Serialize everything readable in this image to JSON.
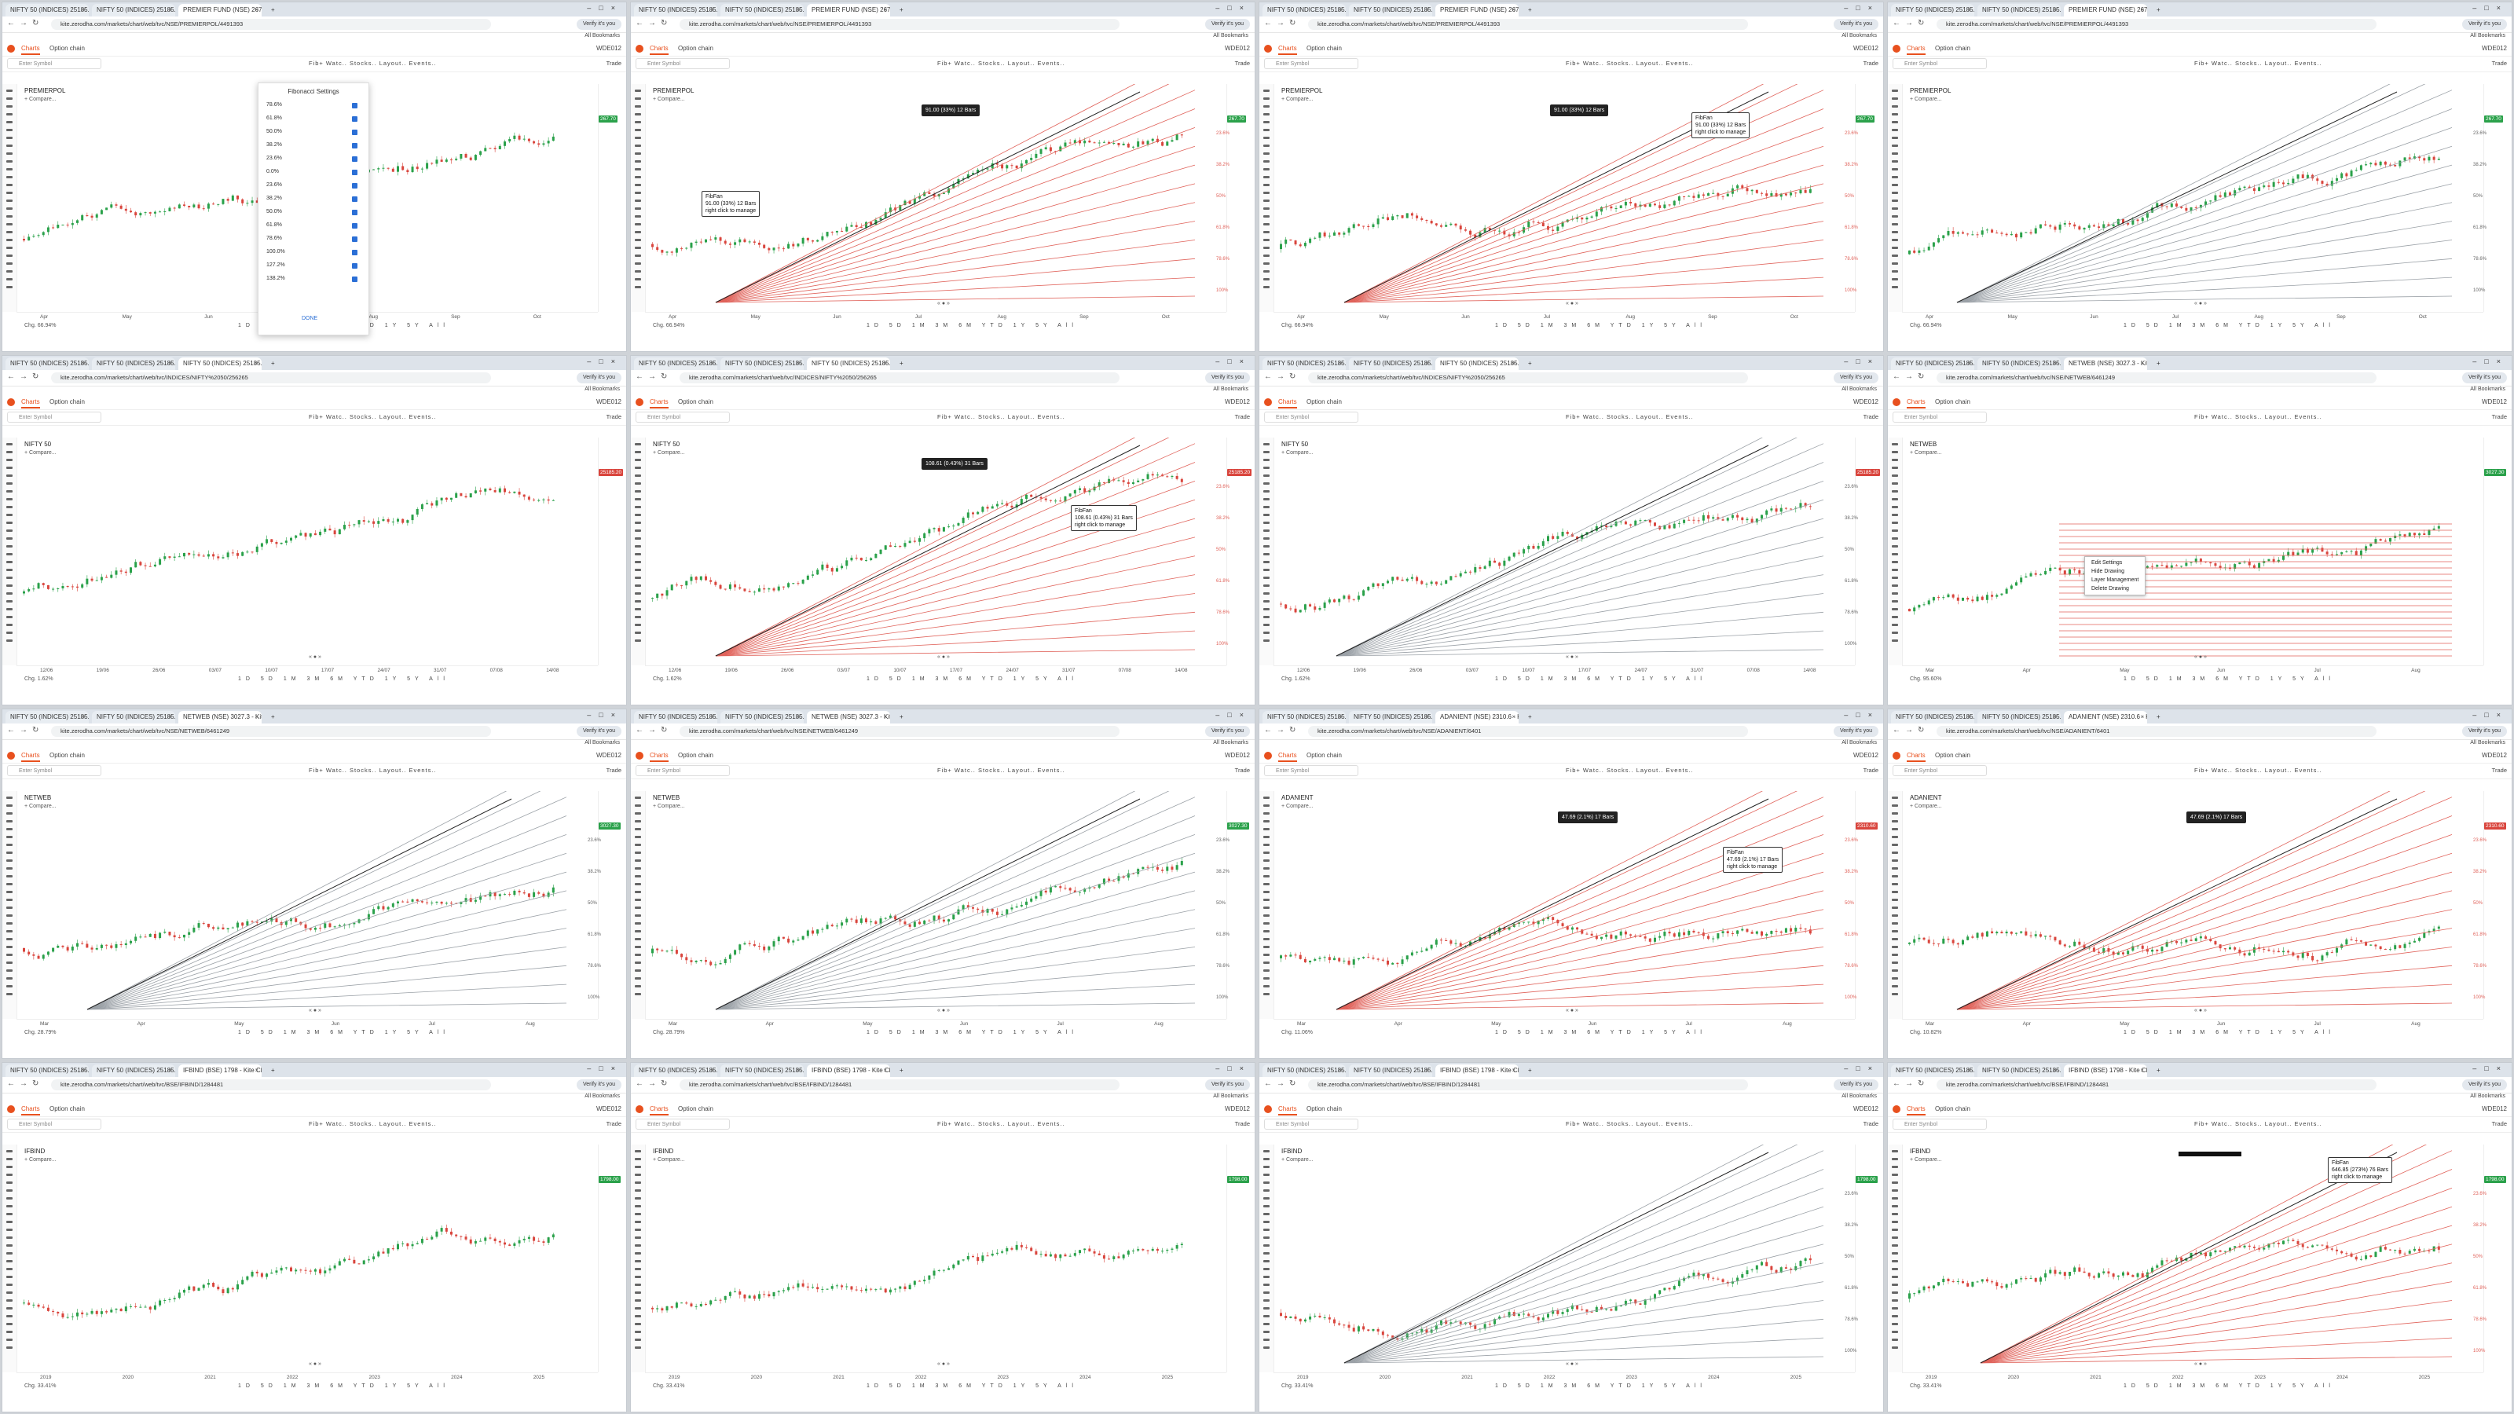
{
  "browser": {
    "tabs": [
      {
        "label": "NIFTY 50 (INDICES) 25185.20"
      },
      {
        "label": "NIFTY 50 (INDICES) 25185.20"
      },
      {
        "label": "PREMIER FUND (NSE) 267.7 - Kite"
      },
      {
        "label": "NIFTY 50 (INDICES) 25185.20"
      },
      {
        "label": "NETWEB (NSE) 3027.3 - Kite Ch"
      },
      {
        "label": "ADANIENT (NSE) 2310.6 - Kite"
      },
      {
        "label": "IFBIND (BSE) 1798 - Kite Chart"
      }
    ],
    "urls": [
      "kite.zerodha.com/markets/chart/web/tvc/NSE/PREMIERPOL/4491393",
      "kite.zerodha.com/markets/chart/web/tvc/INDICES/NIFTY%2050/256265",
      "kite.zerodha.com/markets/chart/web/tvc/NSE/NETWEB/6461249",
      "kite.zerodha.com/markets/chart/web/tvc/NSE/ADANIENT/6401",
      "kite.zerodha.com/markets/chart/web/tvc/BSE/IFBIND/1284481"
    ],
    "profile_label": "Verify it's you",
    "bookmarks_label": "All Bookmarks"
  },
  "app": {
    "tab_chart": "Charts",
    "tab_option_chain": "Option chain",
    "account": "WDE012",
    "search_placeholder": "Enter Symbol",
    "toolbar_items": "Fib+  Watc..  Stocks..  Layout..  Events..",
    "trade_label": "Trade",
    "compare_label": "+ Compare...",
    "periods": [
      "1D",
      "5D",
      "1M",
      "3M",
      "6M",
      "YTD",
      "1Y",
      "5Y",
      "All"
    ],
    "scroll_btn": "« ● »"
  },
  "panels": [
    {
      "symbol": "PREMIERPOL",
      "chg": "Chg. 66.94%",
      "tab_active": 2,
      "url": 0,
      "xlabels": [
        "Apr",
        "May",
        "Jun",
        "Jul",
        "Aug",
        "Sep",
        "Oct"
      ],
      "price_tag": "267.70",
      "color_tag": "green",
      "fan": "none",
      "dialog": true
    },
    {
      "symbol": "PREMIERPOL",
      "chg": "Chg. 66.94%",
      "tab_active": 2,
      "url": 0,
      "xlabels": [
        "Apr",
        "May",
        "Jun",
        "Jul",
        "Aug",
        "Sep",
        "Oct"
      ],
      "price_tag": "267.70",
      "color_tag": "green",
      "fan": "red",
      "tip1": "91.00 (33%) 12 Bars",
      "tip2": "FibFan\n91.00 (33%) 12 Bars\nright click to manage"
    },
    {
      "symbol": "PREMIERPOL",
      "chg": "Chg. 66.94%",
      "tab_active": 2,
      "url": 0,
      "xlabels": [
        "Apr",
        "May",
        "Jun",
        "Jul",
        "Aug",
        "Sep",
        "Oct"
      ],
      "price_tag": "267.70",
      "color_tag": "green",
      "fan": "red",
      "tip1": "91.00 (33%) 12 Bars",
      "tip2": "FibFan\n91.00 (33%) 12 Bars\nright click to manage"
    },
    {
      "symbol": "PREMIERPOL",
      "chg": "Chg. 66.94%",
      "tab_active": 2,
      "url": 0,
      "xlabels": [
        "Apr",
        "May",
        "Jun",
        "Jul",
        "Aug",
        "Sep",
        "Oct"
      ],
      "price_tag": "267.70",
      "color_tag": "green",
      "fan": "gray"
    },
    {
      "symbol": "NIFTY 50",
      "chg": "Chg. 1.62%",
      "tab_active": 3,
      "url": 1,
      "xlabels": [
        "12/06",
        "19/06",
        "26/06",
        "03/07",
        "10/07",
        "17/07",
        "24/07",
        "31/07",
        "07/08",
        "14/08"
      ],
      "price_tag": "25185.20",
      "color_tag": "red",
      "fan": "none"
    },
    {
      "symbol": "NIFTY 50",
      "chg": "Chg. 1.62%",
      "tab_active": 3,
      "url": 1,
      "xlabels": [
        "12/06",
        "19/06",
        "26/06",
        "03/07",
        "10/07",
        "17/07",
        "24/07",
        "31/07",
        "07/08",
        "14/08"
      ],
      "price_tag": "25185.20",
      "color_tag": "red",
      "fan": "red",
      "tip1": "108.61 (0.43%) 31 Bars",
      "tip2": "FibFan\n108.61 (0.43%) 31 Bars\nright click to manage"
    },
    {
      "symbol": "NIFTY 50",
      "chg": "Chg. 1.62%",
      "tab_active": 3,
      "url": 1,
      "xlabels": [
        "12/06",
        "19/06",
        "26/06",
        "03/07",
        "10/07",
        "17/07",
        "24/07",
        "31/07",
        "07/08",
        "14/08"
      ],
      "price_tag": "25185.20",
      "color_tag": "red",
      "fan": "gray"
    },
    {
      "symbol": "NETWEB",
      "chg": "Chg. 95.60%",
      "tab_active": 4,
      "url": 2,
      "xlabels": [
        "Mar",
        "Apr",
        "May",
        "Jun",
        "Jul",
        "Aug"
      ],
      "price_tag": "3027.30",
      "color_tag": "green",
      "fan": "retrace",
      "menu": [
        "Edit Settings",
        "Hide Drawing",
        "Layer Management",
        "Delete Drawing"
      ]
    },
    {
      "symbol": "NETWEB",
      "chg": "Chg. 28.79%",
      "tab_active": 4,
      "url": 2,
      "xlabels": [
        "Mar",
        "Apr",
        "May",
        "Jun",
        "Jul",
        "Aug"
      ],
      "price_tag": "3027.30",
      "color_tag": "green",
      "fan": "gray"
    },
    {
      "symbol": "NETWEB",
      "chg": "Chg. 28.79%",
      "tab_active": 4,
      "url": 2,
      "xlabels": [
        "Mar",
        "Apr",
        "May",
        "Jun",
        "Jul",
        "Aug"
      ],
      "price_tag": "3027.30",
      "color_tag": "green",
      "fan": "gray"
    },
    {
      "symbol": "ADANIENT",
      "chg": "Chg. 11.06%",
      "tab_active": 5,
      "url": 3,
      "xlabels": [
        "Mar",
        "Apr",
        "May",
        "Jun",
        "Jul",
        "Aug"
      ],
      "price_tag": "2310.60",
      "color_tag": "red",
      "fan": "red",
      "tip1": "47.69 (2.1%) 17 Bars",
      "tip2": "FibFan\n47.69 (2.1%) 17 Bars\nright click to manage"
    },
    {
      "symbol": "ADANIENT",
      "chg": "Chg. 10.82%",
      "tab_active": 5,
      "url": 3,
      "xlabels": [
        "Mar",
        "Apr",
        "May",
        "Jun",
        "Jul",
        "Aug"
      ],
      "price_tag": "2310.60",
      "color_tag": "red",
      "fan": "red",
      "tip1": "47.69 (2.1%) 17 Bars"
    },
    {
      "symbol": "IFBIND",
      "chg": "Chg. 33.41%",
      "tab_active": 6,
      "url": 4,
      "xlabels": [
        "2019",
        "2020",
        "2021",
        "2022",
        "2023",
        "2024",
        "2025"
      ],
      "price_tag": "1798.00",
      "color_tag": "green",
      "fan": "none"
    },
    {
      "symbol": "IFBIND",
      "chg": "Chg. 33.41%",
      "tab_active": 6,
      "url": 4,
      "xlabels": [
        "2019",
        "2020",
        "2021",
        "2022",
        "2023",
        "2024",
        "2025"
      ],
      "price_tag": "1798.00",
      "color_tag": "green",
      "fan": "none"
    },
    {
      "symbol": "IFBIND",
      "chg": "Chg. 33.41%",
      "tab_active": 6,
      "url": 4,
      "xlabels": [
        "2019",
        "2020",
        "2021",
        "2022",
        "2023",
        "2024",
        "2025"
      ],
      "price_tag": "1798.00",
      "color_tag": "green",
      "fan": "gray"
    },
    {
      "symbol": "IFBIND",
      "chg": "Chg. 33.41%",
      "tab_active": 6,
      "url": 4,
      "xlabels": [
        "2019",
        "2020",
        "2021",
        "2022",
        "2023",
        "2024",
        "2025"
      ],
      "price_tag": "1798.00",
      "color_tag": "green",
      "fan": "red",
      "tip2": "FibFan\n646.85 (273%) 76 Bars\nright click to manage"
    }
  ],
  "fib_dialog": {
    "title": "Fibonacci Settings",
    "levels": [
      "78.6%",
      "61.8%",
      "50.0%",
      "38.2%",
      "23.6%",
      "0.0%",
      "23.6%",
      "38.2%",
      "50.0%",
      "61.8%",
      "78.6%",
      "100.0%",
      "127.2%",
      "138.2%"
    ],
    "done": "DONE"
  },
  "fan_levels": [
    "23.6%",
    "38.2%",
    "50%",
    "61.8%",
    "78.6%",
    "100%"
  ],
  "colors": {
    "up": "#2aa14a",
    "down": "#d9453d",
    "fan_red": "#e0625a",
    "fan_gray": "#9aa0a6",
    "accent": "#e8501e"
  }
}
